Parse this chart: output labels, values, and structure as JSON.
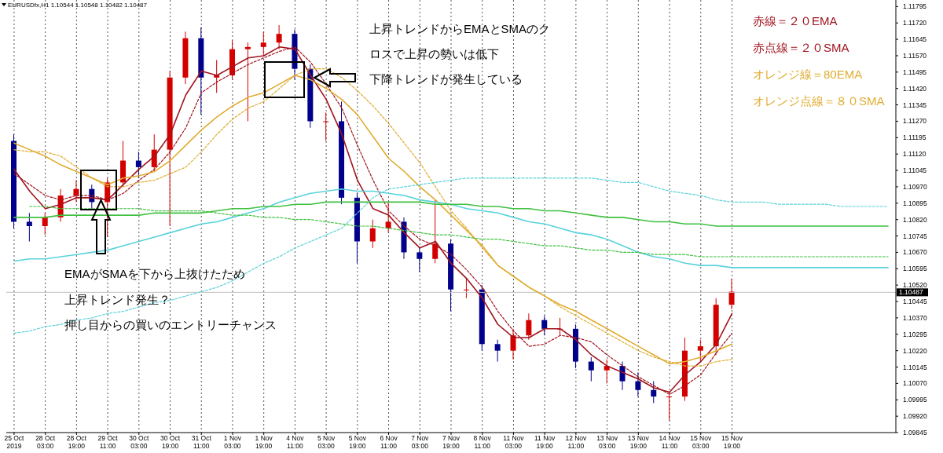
{
  "chart_data": {
    "type": "candlestick",
    "title": "EURUSDfx,H1  1.10544 1.10548 1.10482 1.10487",
    "categories": [
      "25 Oct 2019",
      null,
      "28 Oct 03:00",
      null,
      "28 Oct 19:00",
      null,
      "29 Oct 11:00",
      null,
      "30 Oct 03:00",
      null,
      "30 Oct 19:00",
      null,
      "31 Oct 11:00",
      null,
      "1 Nov 03:00",
      null,
      "1 Nov 19:00",
      null,
      "4 Nov 11:00",
      null,
      "5 Nov 03:00",
      null,
      "5 Nov 19:00",
      null,
      "6 Nov 11:00",
      null,
      "7 Nov 03:00",
      null,
      "7 Nov 19:00",
      null,
      "8 Nov 11:00",
      null,
      "11 Nov 03:00",
      null,
      "11 Nov 19:00",
      null,
      "12 Nov 11:00",
      null,
      "13 Nov 03:00",
      null,
      "13 Nov 19:00",
      null,
      "14 Nov 11:00",
      null,
      "15 Nov 03:00",
      null,
      "15 Nov 19:00",
      null,
      null,
      null,
      null,
      null,
      null,
      null,
      null,
      null,
      null
    ],
    "ohlc": [
      [
        1.1118,
        1.1121,
        1.1078,
        1.1081
      ],
      [
        1.1081,
        1.1085,
        1.1072,
        1.1079
      ],
      [
        1.1079,
        1.1085,
        1.1075,
        1.1083
      ],
      [
        1.1083,
        1.1096,
        1.1081,
        1.1093
      ],
      [
        1.1093,
        1.11,
        1.109,
        1.1096
      ],
      [
        1.1096,
        1.1098,
        1.1087,
        1.109
      ],
      [
        1.109,
        1.1101,
        1.1074,
        1.1099
      ],
      [
        1.1099,
        1.1118,
        1.1097,
        1.1109
      ],
      [
        1.1109,
        1.1113,
        1.1101,
        1.1106
      ],
      [
        1.1106,
        1.1121,
        1.1104,
        1.1114
      ],
      [
        1.1114,
        1.115,
        1.1079,
        1.1147
      ],
      [
        1.1147,
        1.1168,
        1.1144,
        1.1165
      ],
      [
        1.1165,
        1.117,
        1.113,
        1.1147
      ],
      [
        1.1147,
        1.1155,
        1.114,
        1.1148
      ],
      [
        1.1148,
        1.1164,
        1.1146,
        1.116
      ],
      [
        1.116,
        1.1163,
        1.1127,
        1.1161
      ],
      [
        1.1161,
        1.1168,
        1.1157,
        1.1163
      ],
      [
        1.1163,
        1.1171,
        1.116,
        1.1167
      ],
      [
        1.1167,
        1.1169,
        1.1146,
        1.1151
      ],
      [
        1.1151,
        1.1153,
        1.1124,
        1.1127
      ],
      [
        1.1127,
        1.1131,
        1.1118,
        1.1127
      ],
      [
        1.1127,
        1.1136,
        1.1089,
        1.1092
      ],
      [
        1.1092,
        1.1094,
        1.1062,
        1.1072
      ],
      [
        1.1072,
        1.1082,
        1.1069,
        1.1078
      ],
      [
        1.1078,
        1.109,
        1.1076,
        1.1081
      ],
      [
        1.1081,
        1.1083,
        1.1064,
        1.1067
      ],
      [
        1.1067,
        1.1069,
        1.1058,
        1.1064
      ],
      [
        1.1064,
        1.1091,
        1.1062,
        1.1071
      ],
      [
        1.1071,
        1.1073,
        1.104,
        1.105
      ],
      [
        1.105,
        1.1055,
        1.1046,
        1.105
      ],
      [
        1.105,
        1.1052,
        1.1022,
        1.1025
      ],
      [
        1.1025,
        1.1027,
        1.1017,
        1.1022
      ],
      [
        1.1022,
        1.1032,
        1.1018,
        1.1029
      ],
      [
        1.1029,
        1.1039,
        1.1027,
        1.1036
      ],
      [
        1.1036,
        1.1038,
        1.1029,
        1.1032
      ],
      [
        1.1032,
        1.1037,
        1.1029,
        1.1032
      ],
      [
        1.1032,
        1.1034,
        1.1014,
        1.1017
      ],
      [
        1.1017,
        1.1019,
        1.1008,
        1.1013
      ],
      [
        1.1013,
        1.1018,
        1.1007,
        1.1015
      ],
      [
        1.1015,
        1.1017,
        1.1004,
        1.1008
      ],
      [
        1.1008,
        1.1012,
        1.1001,
        1.1004
      ],
      [
        1.1004,
        1.1008,
        1.0998,
        1.1001
      ],
      [
        1.1001,
        1.1003,
        1.099,
        1.1001
      ],
      [
        1.1001,
        1.1028,
        1.0999,
        1.1022
      ],
      [
        1.1022,
        1.1027,
        1.1017,
        1.1024
      ],
      [
        1.1024,
        1.1046,
        1.102,
        1.1043
      ],
      [
        1.1043,
        1.1055,
        1.1041,
        1.1049
      ],
      null,
      null,
      null,
      null,
      null,
      null,
      null,
      null,
      null,
      null
    ],
    "colors": [
      "#00008b",
      "#00008b",
      "#d40000",
      "#d40000",
      "#d40000",
      "#00008b",
      "#d40000",
      "#d40000",
      "#00008b",
      "#d40000",
      "#d40000",
      "#d40000",
      "#00008b",
      "#d40000",
      "#d40000",
      "#d40000",
      "#d40000",
      "#d40000",
      "#00008b",
      "#00008b",
      "#d40000",
      "#00008b",
      "#00008b",
      "#d40000",
      "#d40000",
      "#00008b",
      "#00008b",
      "#d40000",
      "#00008b",
      "#d40000",
      "#00008b",
      "#00008b",
      "#d40000",
      "#d40000",
      "#00008b",
      "#d40000",
      "#00008b",
      "#00008b",
      "#d40000",
      "#00008b",
      "#00008b",
      "#00008b",
      "#d40000",
      "#d40000",
      "#d40000",
      "#d40000",
      "#d40000",
      null,
      null,
      null,
      null,
      null,
      null,
      null,
      null,
      null,
      null
    ],
    "series": [
      {
        "type": "line",
        "name": "赤線＝２０EMA",
        "color": "#a0141e",
        "line_style": "solid",
        "values": [
          1.1105,
          1.1095,
          1.1087,
          1.1089,
          1.1092,
          1.1092,
          1.1091,
          1.1098,
          1.1105,
          1.1111,
          1.1121,
          1.1139,
          1.115,
          1.1148,
          1.1152,
          1.1156,
          1.1157,
          1.1161,
          1.116,
          1.1148,
          1.1137,
          1.1121,
          1.11,
          1.1087,
          1.1084,
          1.1076,
          1.1069,
          1.1072,
          1.1062,
          1.1055,
          1.1046,
          1.1034,
          1.1028,
          1.1028,
          1.1032,
          1.1032,
          1.1027,
          1.102,
          1.1015,
          1.1012,
          1.1009,
          1.1005,
          1.1003,
          1.1011,
          1.1017,
          1.1025,
          1.1039,
          null,
          null,
          null,
          null,
          null,
          null,
          null,
          null,
          null,
          null
        ]
      },
      {
        "type": "line",
        "name": "赤点線＝２０SMA",
        "color": "#a0141e",
        "line_style": "dotted",
        "values": [
          1.1103,
          1.1098,
          1.1093,
          1.1091,
          1.1093,
          1.1093,
          1.1091,
          1.1094,
          1.11,
          1.1105,
          1.1113,
          1.1124,
          1.114,
          1.1145,
          1.1149,
          1.1153,
          1.1156,
          1.1159,
          1.1161,
          1.1154,
          1.1144,
          1.1133,
          1.1116,
          1.11,
          1.1086,
          1.1079,
          1.1073,
          1.107,
          1.1066,
          1.1059,
          1.1051,
          1.104,
          1.1031,
          1.1024,
          1.1025,
          1.1029,
          1.1028,
          1.1026,
          1.102,
          1.1015,
          1.101,
          1.1006,
          1.1002,
          1.1006,
          1.1011,
          1.1021,
          1.103,
          null,
          null,
          null,
          null,
          null,
          null,
          null,
          null,
          null,
          null
        ]
      },
      {
        "type": "line",
        "name": "オレンジ線＝80EMA",
        "color": "#e0ac30",
        "line_style": "solid",
        "values": [
          1.1117,
          1.1114,
          1.1111,
          1.1107,
          1.1104,
          1.1101,
          1.1098,
          1.1101,
          1.1102,
          1.1104,
          1.1109,
          1.1116,
          1.1123,
          1.1129,
          1.1134,
          1.1138,
          1.114,
          1.1144,
          1.1148,
          1.1146,
          1.1142,
          1.1137,
          1.113,
          1.112,
          1.111,
          1.1104,
          1.1097,
          1.1091,
          1.1084,
          1.1077,
          1.107,
          1.1061,
          1.1056,
          1.1051,
          1.1047,
          1.1043,
          1.104,
          1.1036,
          1.1032,
          1.1028,
          1.1024,
          1.102,
          1.1016,
          1.1017,
          1.1019,
          1.1022,
          1.1025,
          null,
          null,
          null,
          null,
          null,
          null,
          null,
          null,
          null,
          null
        ]
      },
      {
        "type": "line",
        "name": "オレンジ点線＝８０SMA",
        "color": "#e0ac30",
        "line_style": "dotted",
        "values": [
          1.1114,
          1.1113,
          1.1113,
          1.1111,
          1.1106,
          1.1101,
          1.1097,
          1.1097,
          1.1099,
          1.11,
          1.1103,
          1.1106,
          1.1113,
          1.1121,
          1.1128,
          1.1133,
          1.1136,
          1.1142,
          1.1148,
          1.1151,
          1.1151,
          1.1147,
          1.1141,
          1.1134,
          1.1126,
          1.1117,
          1.1108,
          1.1097,
          1.1086,
          1.1078,
          1.1069,
          1.1061,
          1.1056,
          1.1051,
          1.1047,
          1.1042,
          1.1038,
          1.1034,
          1.103,
          1.1026,
          1.1022,
          1.1019,
          1.1017,
          1.1015,
          1.1015,
          1.1017,
          1.1018,
          null,
          null,
          null,
          null,
          null,
          null,
          null,
          null,
          null,
          null
        ]
      },
      {
        "type": "line",
        "color": "#5ad2dc",
        "line_style": "solid",
        "values": [
          1.1063,
          1.1064,
          1.1064,
          1.1065,
          1.1066,
          1.1067,
          1.1068,
          1.107,
          1.1072,
          1.1074,
          1.1076,
          1.1078,
          1.108,
          1.1081,
          1.1083,
          1.1085,
          1.1087,
          1.109,
          1.1092,
          1.1094,
          1.1095,
          1.1096,
          1.1095,
          1.1095,
          1.1094,
          1.1093,
          1.1091,
          1.109,
          1.1089,
          1.1087,
          1.1086,
          1.1085,
          1.1083,
          1.1081,
          1.108,
          1.1078,
          1.1076,
          1.1075,
          1.1073,
          1.107,
          1.1067,
          1.1065,
          1.1064,
          1.1062,
          1.1061,
          1.1061,
          1.106,
          1.106,
          1.106,
          1.106,
          1.106,
          1.106,
          1.106,
          1.106,
          1.106,
          1.106,
          1.106
        ]
      },
      {
        "type": "line",
        "color": "#40c040",
        "line_style": "solid",
        "values": [
          1.1083,
          1.1083,
          1.1083,
          1.1084,
          1.1084,
          1.1084,
          1.1084,
          1.1084,
          1.1084,
          1.1085,
          1.1085,
          1.1085,
          1.1085,
          1.1086,
          1.1087,
          1.1087,
          1.1088,
          1.1088,
          1.1089,
          1.1089,
          1.109,
          1.109,
          1.109,
          1.109,
          1.109,
          1.109,
          1.109,
          1.1089,
          1.1089,
          1.1089,
          1.1088,
          1.1088,
          1.1087,
          1.1087,
          1.1086,
          1.1086,
          1.1085,
          1.1084,
          1.1083,
          1.1083,
          1.1082,
          1.1081,
          1.1081,
          1.108,
          1.108,
          1.1079,
          1.1079,
          1.1079,
          1.1079,
          1.1079,
          1.1079,
          1.1079,
          1.1079,
          1.1079,
          1.1079,
          1.1079,
          1.1079
        ]
      },
      {
        "type": "line",
        "color": "#5ad2dc",
        "line_style": "dotted",
        "values": [
          1.103,
          1.1031,
          1.1033,
          1.1034,
          1.1036,
          1.1037,
          1.1039,
          1.104,
          1.1042,
          1.1044,
          1.1045,
          1.1047,
          1.1049,
          1.1051,
          1.1054,
          1.1058,
          1.1062,
          1.1065,
          1.1069,
          1.1072,
          1.1075,
          1.1078,
          1.1085,
          1.1092,
          1.1096,
          1.1097,
          1.1098,
          1.1099,
          1.11,
          1.1101,
          1.1101,
          1.1101,
          1.1101,
          1.1101,
          1.1101,
          1.1101,
          1.1101,
          1.1101,
          1.11,
          1.1099,
          1.1099,
          1.1097,
          1.1095,
          1.1094,
          1.1093,
          1.1091,
          1.109,
          1.109,
          1.109,
          1.1089,
          1.1089,
          1.1089,
          1.1089,
          1.1088,
          1.1088,
          1.1088,
          1.1088
        ]
      },
      {
        "type": "line",
        "color": "#40c040",
        "line_style": "dotted",
        "values": [
          null,
          1.1088,
          1.1088,
          1.1087,
          1.1087,
          1.1087,
          1.1087,
          1.1087,
          1.1087,
          1.1086,
          1.1086,
          1.1086,
          1.1086,
          1.1085,
          1.1084,
          1.1084,
          1.1083,
          1.1083,
          1.1082,
          1.1082,
          1.1081,
          1.108,
          1.1079,
          1.1079,
          1.1078,
          1.1077,
          1.1076,
          1.1075,
          1.1075,
          1.1074,
          1.1073,
          1.1073,
          1.1072,
          1.1071,
          1.107,
          1.107,
          1.1069,
          1.1068,
          1.1068,
          1.1067,
          1.1067,
          1.1066,
          1.1066,
          1.1066,
          1.1065,
          1.1065,
          1.1065,
          1.1065,
          1.1065,
          1.1065,
          1.1065,
          1.1065,
          1.1065,
          1.1065,
          1.1065,
          1.1065,
          1.1065
        ]
      }
    ],
    "ylim": [
      1.09845,
      1.11825
    ],
    "yticks": [
      1.09845,
      {
        "value": 1.0992,
        "label": "1.09920"
      },
      1.09995,
      {
        "value": 1.1007,
        "label": "1.10070"
      },
      1.10145,
      {
        "value": 1.1022,
        "label": "1.10220"
      },
      1.10295,
      {
        "value": 1.1037,
        "label": "1.10370"
      },
      1.10445,
      {
        "value": 1.1052,
        "label": "1.10520"
      },
      1.10595,
      {
        "value": 1.1067,
        "label": "1.10670"
      },
      1.10745,
      {
        "value": 1.1082,
        "label": "1.10820"
      },
      1.10895,
      {
        "value": 1.1097,
        "label": "1.10970"
      },
      1.11045,
      {
        "value": 1.1112,
        "label": "1.11120"
      },
      1.11195,
      {
        "value": 1.1127,
        "label": "1.11270"
      },
      1.11345,
      {
        "value": 1.1142,
        "label": "1.11420"
      },
      1.11495,
      {
        "value": 1.1157,
        "label": "1.11570"
      },
      1.11645,
      {
        "value": 1.1172,
        "label": "1.11720"
      },
      1.11795
    ],
    "ref_lines": [
      {
        "axis": "y",
        "value": 1.10487,
        "label": "1.10487",
        "color": "#c0c0c0"
      }
    ],
    "grid": "x",
    "legend": "top right",
    "annotations": [
      "上昇トレンドからEMAとSMAのク",
      "ロスで上昇の勢いは低下",
      "下降トレンドが発生している",
      "EMAがSMAを下から上抜けたため",
      "上昇トレンド発生？",
      "押し目からの買いのエントリーチャンス"
    ]
  }
}
